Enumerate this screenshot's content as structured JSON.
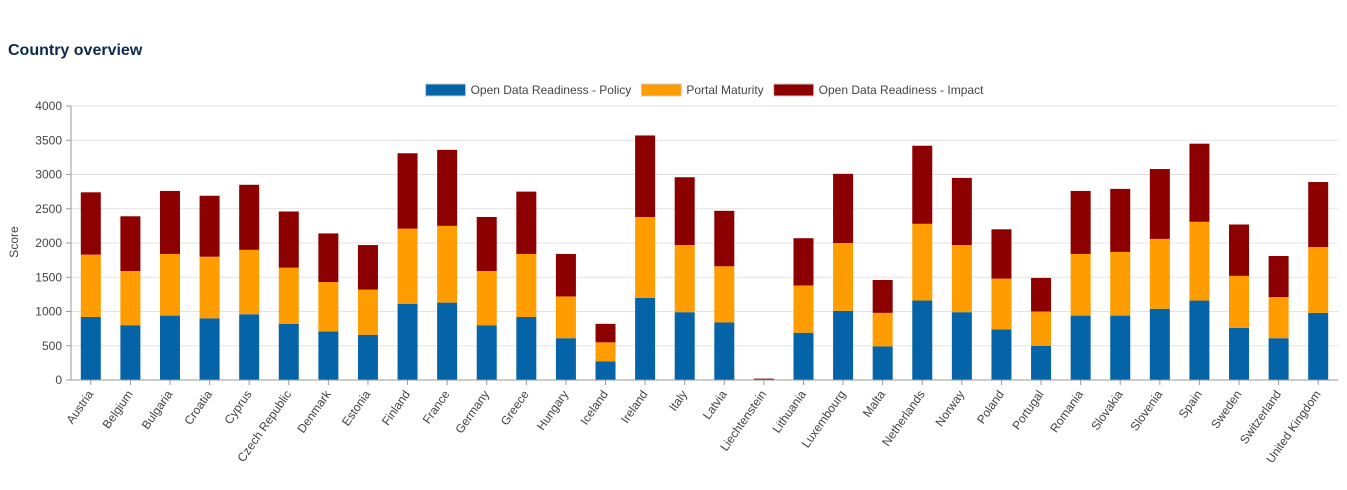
{
  "page": {
    "title": "Country overview"
  },
  "chart_data": {
    "type": "bar",
    "stacked": true,
    "title": "",
    "xlabel": "",
    "ylabel": "Score",
    "ylim": [
      0,
      4000
    ],
    "yticks": [
      0,
      500,
      1000,
      1500,
      2000,
      2500,
      3000,
      3500,
      4000
    ],
    "grid": true,
    "legend": "top-center",
    "categories": [
      "Austria",
      "Belgium",
      "Bulgaria",
      "Croatia",
      "Cyprus",
      "Czech Republic",
      "Denmark",
      "Estonia",
      "Finland",
      "France",
      "Germany",
      "Greece",
      "Hungary",
      "Iceland",
      "Ireland",
      "Italy",
      "Latvia",
      "Liechtenstein",
      "Lithuania",
      "Luxembourg",
      "Malta",
      "Netherlands",
      "Norway",
      "Poland",
      "Portugal",
      "Romania",
      "Slovakia",
      "Slovenia",
      "Spain",
      "Sweden",
      "Switzerland",
      "United Kingdom"
    ],
    "series": [
      {
        "name": "Open Data Readiness - Policy",
        "color": "#0563a8",
        "values": [
          920,
          800,
          940,
          900,
          960,
          820,
          710,
          660,
          1110,
          1130,
          800,
          920,
          610,
          270,
          1200,
          990,
          840,
          0,
          690,
          1010,
          490,
          1160,
          990,
          740,
          500,
          940,
          940,
          1040,
          1160,
          760,
          610,
          980
        ]
      },
      {
        "name": "Portal Maturity",
        "color": "#ff9c00",
        "values": [
          910,
          790,
          900,
          900,
          940,
          820,
          720,
          660,
          1100,
          1120,
          790,
          920,
          610,
          280,
          1180,
          980,
          820,
          0,
          690,
          990,
          490,
          1120,
          980,
          740,
          500,
          900,
          930,
          1020,
          1150,
          760,
          600,
          960
        ]
      },
      {
        "name": "Open Data Readiness - Impact",
        "color": "#8d0000",
        "values": [
          910,
          800,
          920,
          890,
          950,
          820,
          710,
          650,
          1100,
          1110,
          790,
          910,
          620,
          270,
          1190,
          990,
          810,
          20,
          690,
          1010,
          480,
          1140,
          980,
          720,
          490,
          920,
          920,
          1020,
          1140,
          750,
          600,
          950
        ]
      }
    ]
  }
}
